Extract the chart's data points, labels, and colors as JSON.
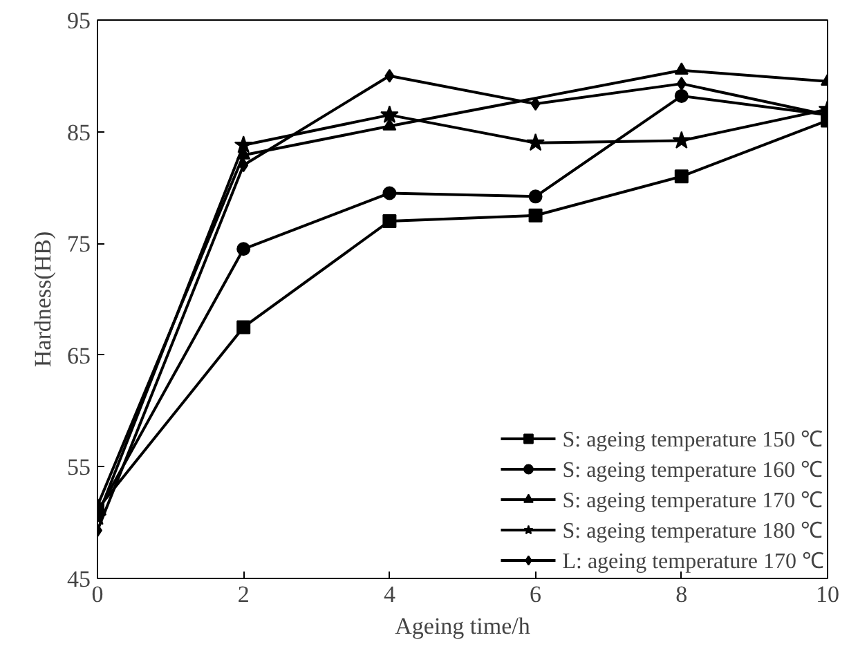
{
  "chart_data": {
    "type": "line",
    "xlabel": "Ageing time/h",
    "ylabel": "Hardness(HB)",
    "x": [
      0,
      2,
      4,
      6,
      8,
      10
    ],
    "xlim": [
      0,
      10
    ],
    "xticks": [
      0,
      2,
      4,
      6,
      8,
      10
    ],
    "ylim": [
      45,
      95
    ],
    "yticks": [
      45,
      55,
      65,
      75,
      85,
      95
    ],
    "grid": false,
    "legend": "bottom right",
    "line_style": "solid",
    "series": [
      {
        "name": "S: ageing temperature 150 ℃",
        "color": "#000000",
        "marker": "square",
        "values": [
          51.2,
          67.5,
          77,
          77.5,
          81,
          86
        ]
      },
      {
        "name": "S: ageing temperature 160 ℃",
        "color": "#000000",
        "marker": "circle",
        "values": [
          50.9,
          74.5,
          79.5,
          79.2,
          88.2,
          86.5
        ]
      },
      {
        "name": "S: ageing temperature 170 ℃",
        "color": "#000000",
        "marker": "triangle",
        "values": [
          51.5,
          82.9,
          85.5,
          null,
          90.5,
          89.5
        ]
      },
      {
        "name": "S: ageing temperature 180 ℃",
        "color": "#000000",
        "marker": "star",
        "values": [
          50.5,
          83.8,
          86.5,
          84,
          84.2,
          87
        ]
      },
      {
        "name": "L: ageing temperature 170 ℃",
        "color": "#000000",
        "marker": "diamond",
        "values": [
          49.3,
          82,
          90,
          87.5,
          89.3,
          86.5
        ]
      }
    ]
  }
}
